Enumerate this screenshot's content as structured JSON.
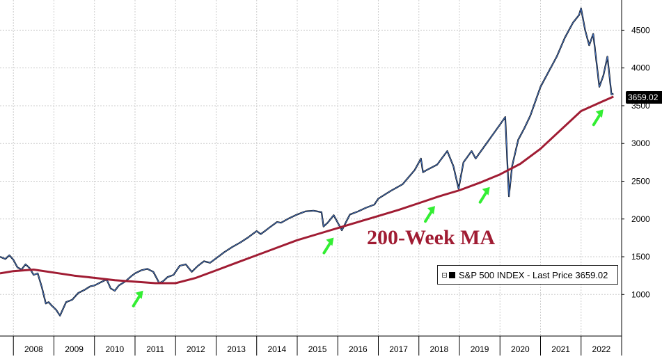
{
  "chart_data": {
    "type": "line",
    "annotation": "200-Week MA",
    "legend": {
      "label": "S&P 500 INDEX - Last Price 3659.02",
      "placement": "bottom-right"
    },
    "last_price_label": "3659.02",
    "ylim": [
      450,
      4900
    ],
    "xlim": [
      2007.67,
      2023.0
    ],
    "y_ticks": [
      1000,
      1500,
      2000,
      2500,
      3000,
      3500,
      4000,
      4500
    ],
    "x_tick_labels": [
      "2008",
      "2009",
      "2010",
      "2011",
      "2012",
      "2013",
      "2014",
      "2015",
      "2016",
      "2017",
      "2018",
      "2019",
      "2020",
      "2021",
      "2022"
    ],
    "grid": true,
    "colors": {
      "price": "#1a2a6c",
      "ma": "#a01c33",
      "arrow": "#33ee33",
      "grid": "#cccccc"
    },
    "series": [
      {
        "name": "S&P 500 INDEX",
        "x": [
          2007.67,
          2007.8,
          2007.9,
          2008.0,
          2008.1,
          2008.2,
          2008.3,
          2008.4,
          2008.5,
          2008.6,
          2008.7,
          2008.8,
          2008.87,
          2008.95,
          2009.05,
          2009.15,
          2009.2,
          2009.3,
          2009.45,
          2009.6,
          2009.75,
          2009.9,
          2010.0,
          2010.15,
          2010.3,
          2010.4,
          2010.5,
          2010.6,
          2010.75,
          2010.9,
          2011.0,
          2011.15,
          2011.3,
          2011.45,
          2011.6,
          2011.7,
          2011.8,
          2011.95,
          2012.1,
          2012.25,
          2012.4,
          2012.55,
          2012.7,
          2012.85,
          2013.0,
          2013.2,
          2013.4,
          2013.6,
          2013.8,
          2014.0,
          2014.1,
          2014.3,
          2014.5,
          2014.6,
          2014.8,
          2015.0,
          2015.2,
          2015.4,
          2015.6,
          2015.65,
          2015.75,
          2015.9,
          2016.05,
          2016.1,
          2016.3,
          2016.5,
          2016.7,
          2016.9,
          2017.0,
          2017.3,
          2017.6,
          2017.9,
          2018.05,
          2018.1,
          2018.2,
          2018.45,
          2018.7,
          2018.85,
          2018.98,
          2019.1,
          2019.3,
          2019.4,
          2019.6,
          2019.8,
          2020.0,
          2020.13,
          2020.22,
          2020.3,
          2020.45,
          2020.6,
          2020.75,
          2020.9,
          2021.0,
          2021.2,
          2021.4,
          2021.6,
          2021.8,
          2021.95,
          2022.0,
          2022.1,
          2022.2,
          2022.3,
          2022.45,
          2022.55,
          2022.65,
          2022.75,
          2022.8
        ],
        "values": [
          1500,
          1470,
          1520,
          1460,
          1360,
          1330,
          1400,
          1350,
          1260,
          1280,
          1100,
          880,
          900,
          850,
          800,
          720,
          780,
          900,
          930,
          1020,
          1060,
          1110,
          1120,
          1160,
          1200,
          1080,
          1050,
          1120,
          1170,
          1240,
          1280,
          1320,
          1340,
          1300,
          1150,
          1180,
          1230,
          1260,
          1380,
          1400,
          1300,
          1380,
          1440,
          1420,
          1480,
          1560,
          1630,
          1690,
          1760,
          1840,
          1800,
          1880,
          1960,
          1950,
          2010,
          2060,
          2100,
          2110,
          2090,
          1900,
          1950,
          2050,
          1900,
          1850,
          2060,
          2100,
          2150,
          2190,
          2270,
          2370,
          2460,
          2650,
          2800,
          2620,
          2650,
          2720,
          2900,
          2700,
          2400,
          2750,
          2900,
          2800,
          2950,
          3100,
          3250,
          3350,
          2300,
          2700,
          3050,
          3200,
          3370,
          3600,
          3750,
          3950,
          4150,
          4400,
          4600,
          4700,
          4790,
          4500,
          4300,
          4450,
          3750,
          3900,
          4150,
          3650,
          3659
        ]
      },
      {
        "name": "200-Week MA",
        "x": [
          2007.67,
          2008.0,
          2008.5,
          2009.0,
          2009.5,
          2010.0,
          2010.5,
          2011.0,
          2011.5,
          2012.0,
          2012.5,
          2013.0,
          2013.5,
          2014.0,
          2014.5,
          2015.0,
          2015.5,
          2016.0,
          2016.5,
          2017.0,
          2017.5,
          2018.0,
          2018.5,
          2019.0,
          2019.5,
          2020.0,
          2020.5,
          2021.0,
          2021.5,
          2022.0,
          2022.5,
          2022.8
        ],
        "values": [
          1280,
          1310,
          1330,
          1290,
          1250,
          1220,
          1190,
          1170,
          1150,
          1150,
          1220,
          1320,
          1420,
          1520,
          1620,
          1720,
          1800,
          1880,
          1960,
          2040,
          2120,
          2210,
          2300,
          2380,
          2480,
          2590,
          2730,
          2930,
          3180,
          3430,
          3550,
          3620
        ]
      }
    ]
  }
}
